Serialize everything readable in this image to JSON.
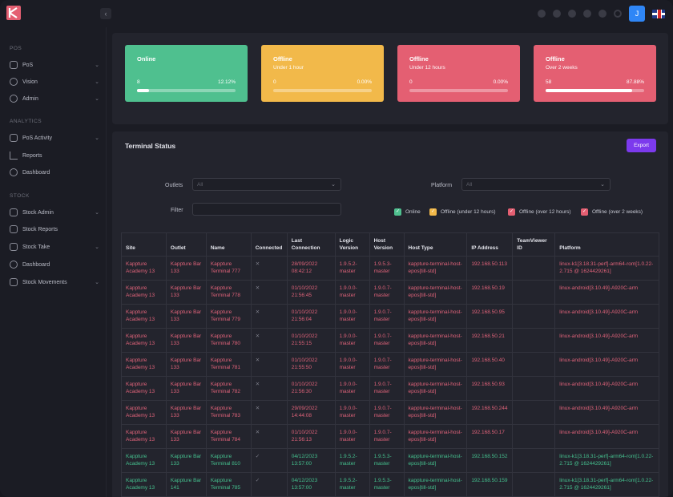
{
  "colors": {
    "accent": "#7c3aed",
    "online": "#4fc08f",
    "warning": "#f2b94a",
    "offline": "#e45f72"
  },
  "header": {
    "icons": [
      "globe-icon",
      "notes-icon",
      "mail-icon",
      "chat-icon",
      "settings-icon",
      "moon-icon"
    ],
    "user_initial": "J"
  },
  "sidebar": {
    "sections": [
      {
        "label": "POS",
        "items": [
          {
            "label": "PoS",
            "icon": "pos-icon",
            "chevron": true
          },
          {
            "label": "Vision",
            "icon": "vision-icon",
            "chevron": true
          },
          {
            "label": "Admin",
            "icon": "admin-icon",
            "chevron": true
          }
        ]
      },
      {
        "label": "ANALYTICS",
        "items": [
          {
            "label": "PoS Activity",
            "icon": "activity-icon",
            "chevron": true
          },
          {
            "label": "Reports",
            "icon": "reports-icon",
            "chevron": false
          },
          {
            "label": "Dashboard",
            "icon": "dashboard-icon",
            "chevron": false
          }
        ]
      },
      {
        "label": "STOCK",
        "items": [
          {
            "label": "Stock Admin",
            "icon": "stock-admin-icon",
            "chevron": true
          },
          {
            "label": "Stock Reports",
            "icon": "stock-reports-icon",
            "chevron": false
          },
          {
            "label": "Stock Take",
            "icon": "stock-take-icon",
            "chevron": true
          },
          {
            "label": "Dashboard",
            "icon": "dashboard-icon",
            "chevron": false
          },
          {
            "label": "Stock Movements",
            "icon": "stock-movements-icon",
            "chevron": true
          }
        ]
      }
    ]
  },
  "cards": [
    {
      "title": "Online",
      "subtitle": "",
      "count": "8",
      "percent": "12.12%",
      "fraction": 0.1212
    },
    {
      "title": "Offline",
      "subtitle": "Under 1 hour",
      "count": "0",
      "percent": "0.00%",
      "fraction": 0
    },
    {
      "title": "Offline",
      "subtitle": "Under 12 hours",
      "count": "0",
      "percent": "0.00%",
      "fraction": 0
    },
    {
      "title": "Offline",
      "subtitle": "Over 2 weeks",
      "count": "58",
      "percent": "87.88%",
      "fraction": 0.8788
    }
  ],
  "terminal_status": {
    "title": "Terminal Status",
    "export_label": "Export",
    "filters": {
      "outlets_label": "Outlets",
      "outlets_value": "All",
      "platform_label": "Platform",
      "platform_value": "All",
      "filter_label": "Filter",
      "filter_value": ""
    },
    "legend": [
      {
        "label": "Online",
        "color": "#4fc08f"
      },
      {
        "label": "Offline (under 12 hours)",
        "color": "#f2b94a"
      },
      {
        "label": "Offline (over 12 hours)",
        "color": "#e45f72"
      },
      {
        "label": "Offline (over 2 weeks)",
        "color": "#e45f72"
      }
    ],
    "columns": [
      "Site",
      "Outlet",
      "Name",
      "Connected",
      "Last Connection",
      "Logic Version",
      "Host Version",
      "Host Type",
      "IP Address",
      "TeamViewer ID",
      "Platform"
    ],
    "rows": [
      {
        "status": "off",
        "site": "Kappture Academy 13",
        "outlet": "Kappture Bar 133",
        "name": "Kappture Terminal 777",
        "connected": "✕",
        "last": "28/09/2022 08:42:12",
        "logic": "1.9.5.2-master",
        "host": "1.9.5.3-master",
        "host_type": "kappture-terminal-host-epos[till-std]",
        "ip": "192.168.50.113",
        "tv": "",
        "platform": "linux-k1[3.18.31-perf]-arm64-rom[1.0.22-2.715 @ 1624429261]"
      },
      {
        "status": "off",
        "site": "Kappture Academy 13",
        "outlet": "Kappture Bar 133",
        "name": "Kappture Terminal 778",
        "connected": "✕",
        "last": "01/10/2022 21:56:45",
        "logic": "1.9.0.0-master",
        "host": "1.9.0.7-master",
        "host_type": "kappture-terminal-host-epos[till-std]",
        "ip": "192.168.50.19",
        "tv": "",
        "platform": "linux-android[3.10.49]-A920C-arm"
      },
      {
        "status": "off",
        "site": "Kappture Academy 13",
        "outlet": "Kappture Bar 133",
        "name": "Kappture Terminal 779",
        "connected": "✕",
        "last": "01/10/2022 21:56:04",
        "logic": "1.9.0.0-master",
        "host": "1.9.0.7-master",
        "host_type": "kappture-terminal-host-epos[till-std]",
        "ip": "192.168.50.95",
        "tv": "",
        "platform": "linux-android[3.10.49]-A920C-arm"
      },
      {
        "status": "off",
        "site": "Kappture Academy 13",
        "outlet": "Kappture Bar 133",
        "name": "Kappture Terminal 780",
        "connected": "✕",
        "last": "01/10/2022 21:55:15",
        "logic": "1.9.0.0-master",
        "host": "1.9.0.7-master",
        "host_type": "kappture-terminal-host-epos[till-std]",
        "ip": "192.168.50.21",
        "tv": "",
        "platform": "linux-android[3.10.49]-A920C-arm"
      },
      {
        "status": "off",
        "site": "Kappture Academy 13",
        "outlet": "Kappture Bar 133",
        "name": "Kappture Terminal 781",
        "connected": "✕",
        "last": "01/10/2022 21:55:50",
        "logic": "1.9.0.0-master",
        "host": "1.9.0.7-master",
        "host_type": "kappture-terminal-host-epos[till-std]",
        "ip": "192.168.50.40",
        "tv": "",
        "platform": "linux-android[3.10.49]-A920C-arm"
      },
      {
        "status": "off",
        "site": "Kappture Academy 13",
        "outlet": "Kappture Bar 133",
        "name": "Kappture Terminal 782",
        "connected": "✕",
        "last": "01/10/2022 21:56:30",
        "logic": "1.9.0.0-master",
        "host": "1.9.0.7-master",
        "host_type": "kappture-terminal-host-epos[till-std]",
        "ip": "192.168.50.93",
        "tv": "",
        "platform": "linux-android[3.10.49]-A920C-arm"
      },
      {
        "status": "off",
        "site": "Kappture Academy 13",
        "outlet": "Kappture Bar 133",
        "name": "Kappture Terminal 783",
        "connected": "✕",
        "last": "29/09/2022 14:44:08",
        "logic": "1.9.0.0-master",
        "host": "1.9.0.7-master",
        "host_type": "kappture-terminal-host-epos[till-std]",
        "ip": "192.168.50.244",
        "tv": "",
        "platform": "linux-android[3.10.49]-A920C-arm"
      },
      {
        "status": "off",
        "site": "Kappture Academy 13",
        "outlet": "Kappture Bar 133",
        "name": "Kappture Terminal 784",
        "connected": "✕",
        "last": "01/10/2022 21:56:13",
        "logic": "1.9.0.0-master",
        "host": "1.9.0.7-master",
        "host_type": "kappture-terminal-host-epos[till-std]",
        "ip": "192.168.50.17",
        "tv": "",
        "platform": "linux-android[3.10.49]-A920C-arm"
      },
      {
        "status": "on",
        "site": "Kappture Academy 13",
        "outlet": "Kappture Bar 133",
        "name": "Kappture Terminal 810",
        "connected": "✓",
        "last": "04/12/2023 13:57:00",
        "logic": "1.9.5.2-master",
        "host": "1.9.5.3-master",
        "host_type": "kappture-terminal-host-epos[till-std]",
        "ip": "192.168.50.152",
        "tv": "",
        "platform": "linux-k1[3.18.31-perf]-arm64-rom[1.0.22-2.715 @ 1624429261]"
      },
      {
        "status": "on",
        "site": "Kappture Academy 13",
        "outlet": "Kappture Bar 141",
        "name": "Kappture Terminal 785",
        "connected": "✓",
        "last": "04/12/2023 13:57:00",
        "logic": "1.9.5.2-master",
        "host": "1.9.5.3-master",
        "host_type": "kappture-terminal-host-epos[till-std]",
        "ip": "192.168.50.159",
        "tv": "",
        "platform": "linux-k1[3.18.31-perf]-arm64-rom[1.0.22-2.715 @ 1624429261]"
      }
    ]
  }
}
